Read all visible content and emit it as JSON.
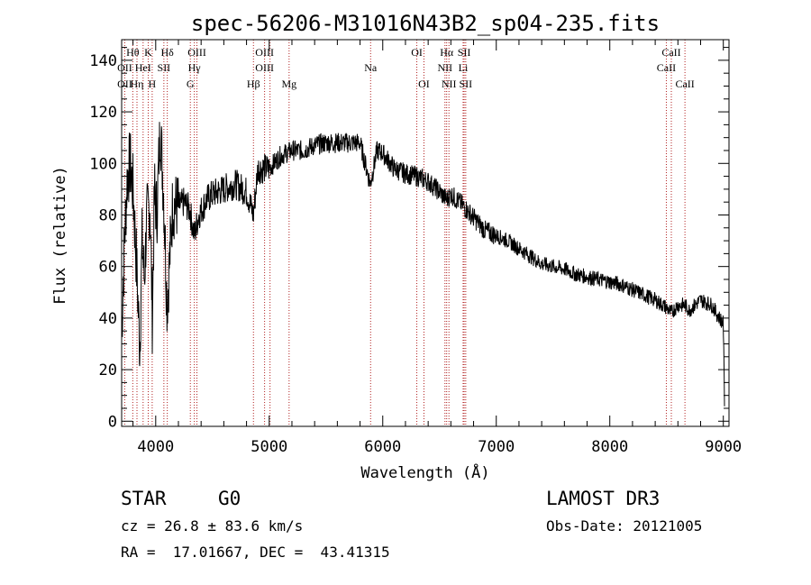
{
  "chart_data": {
    "type": "line",
    "title": "spec-56206-M31016N43B2_sp04-235.fits",
    "xlabel": "Wavelength (Å)",
    "ylabel": "Flux (relative)",
    "xlim": [
      3700,
      9050
    ],
    "ylim": [
      -2,
      148
    ],
    "xticks": [
      4000,
      5000,
      6000,
      7000,
      8000,
      9000
    ],
    "yticks": [
      0,
      20,
      40,
      60,
      80,
      100,
      120,
      140
    ],
    "grid": false,
    "line_color": "#000000",
    "marker_color": "#b22222",
    "series": [
      {
        "name": "spectrum",
        "x": [
          3700,
          3725,
          3750,
          3775,
          3800,
          3830,
          3860,
          3880,
          3900,
          3920,
          3950,
          3970,
          3990,
          4010,
          4040,
          4070,
          4100,
          4150,
          4200,
          4250,
          4300,
          4340,
          4380,
          4450,
          4500,
          4600,
          4700,
          4800,
          4860,
          4900,
          5000,
          5100,
          5200,
          5300,
          5400,
          5500,
          5600,
          5700,
          5800,
          5890,
          5950,
          6000,
          6100,
          6200,
          6300,
          6400,
          6500,
          6563,
          6600,
          6700,
          6800,
          6900,
          7000,
          7100,
          7200,
          7300,
          7400,
          7500,
          7600,
          7700,
          7800,
          7900,
          8000,
          8100,
          8200,
          8300,
          8400,
          8500,
          8540,
          8600,
          8660,
          8700,
          8800,
          8900,
          8950,
          9000,
          9010
        ],
        "y": [
          35,
          70,
          95,
          100,
          90,
          62,
          28,
          70,
          55,
          78,
          85,
          40,
          90,
          80,
          115,
          88,
          45,
          84,
          83,
          85,
          82,
          72,
          80,
          86,
          88,
          90,
          92,
          89,
          80,
          98,
          98,
          103,
          105,
          105,
          107,
          108,
          108,
          108,
          108,
          92,
          105,
          104,
          98,
          96,
          95,
          93,
          89,
          86,
          88,
          84,
          79,
          74,
          72,
          70,
          67,
          64,
          61,
          60,
          59,
          57,
          56,
          55,
          54,
          53,
          51,
          49,
          47,
          44,
          42,
          45,
          45,
          43,
          47,
          45,
          41,
          38,
          8
        ]
      }
    ],
    "lines_top": [
      {
        "label": "Hθ",
        "x": 3798,
        "row": 0
      },
      {
        "label": "OII",
        "x": 3727,
        "row": 1
      },
      {
        "label": "OII",
        "x": 3727,
        "row": 2
      },
      {
        "label": "Hη",
        "x": 3835,
        "row": 2
      },
      {
        "label": "HeI",
        "x": 3889,
        "row": 1
      },
      {
        "label": "K",
        "x": 3934,
        "row": 0
      },
      {
        "label": "H",
        "x": 3969,
        "row": 2
      },
      {
        "label": "SII",
        "x": 4072,
        "row": 1
      },
      {
        "label": "Hδ",
        "x": 4102,
        "row": 0
      },
      {
        "label": "OIII",
        "x": 4363,
        "row": 0
      },
      {
        "label": "Hγ",
        "x": 4340,
        "row": 1
      },
      {
        "label": "G",
        "x": 4305,
        "row": 2
      },
      {
        "label": "OIII",
        "x": 4959,
        "row": 0
      },
      {
        "label": "OIII",
        "x": 4959,
        "row": 1
      },
      {
        "label": "Hβ",
        "x": 4861,
        "row": 2
      },
      {
        "label": "Mg",
        "x": 5175,
        "row": 2
      },
      {
        "label": "Na",
        "x": 5893,
        "row": 1
      },
      {
        "label": "OI",
        "x": 6300,
        "row": 0
      },
      {
        "label": "OI",
        "x": 6363,
        "row": 2
      },
      {
        "label": "Hα",
        "x": 6563,
        "row": 0
      },
      {
        "label": "SII",
        "x": 6717,
        "row": 0
      },
      {
        "label": "NII",
        "x": 6548,
        "row": 1
      },
      {
        "label": "Li",
        "x": 6708,
        "row": 1
      },
      {
        "label": "NII",
        "x": 6583,
        "row": 2
      },
      {
        "label": "SII",
        "x": 6731,
        "row": 2
      },
      {
        "label": "CaII",
        "x": 8542,
        "row": 0
      },
      {
        "label": "CaII",
        "x": 8498,
        "row": 1
      },
      {
        "label": "CaII",
        "x": 8662,
        "row": 2
      }
    ],
    "line_positions": [
      3727,
      3798,
      3835,
      3889,
      3934,
      3969,
      4072,
      4102,
      4305,
      4340,
      4363,
      4861,
      4959,
      5007,
      5175,
      5893,
      6300,
      6363,
      6548,
      6563,
      6583,
      6708,
      6717,
      6731,
      8498,
      8542,
      8662
    ]
  },
  "info": {
    "class_label": "STAR",
    "subclass": "G0",
    "survey": "LAMOST DR3",
    "cz": "cz = 26.8 ± 83.6 km/s",
    "obs_date": "Obs-Date: 20121005",
    "coords": "RA =  17.01667, DEC =  43.41315"
  }
}
